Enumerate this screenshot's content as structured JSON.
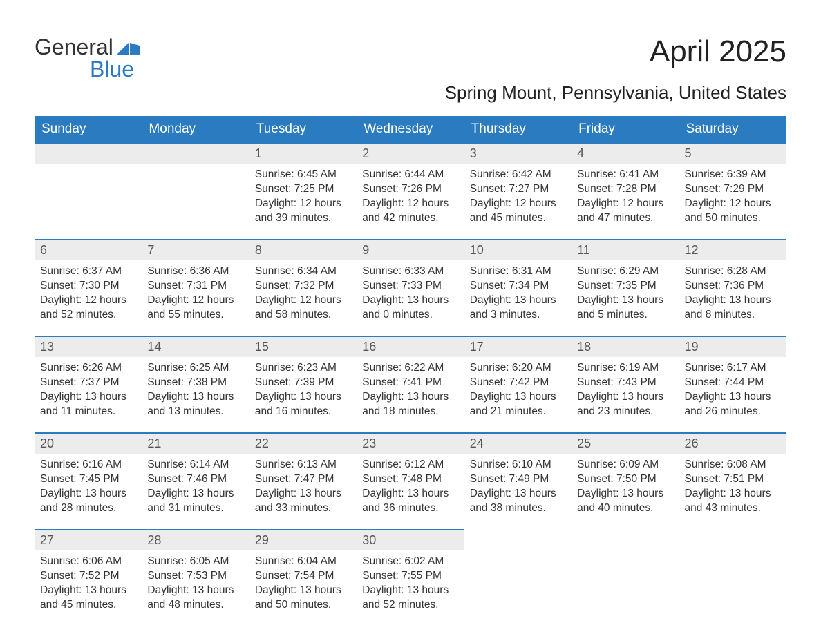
{
  "logo": {
    "part1": "General",
    "part2": "Blue"
  },
  "title": "April 2025",
  "subtitle": "Spring Mount, Pennsylvania, United States",
  "colors": {
    "header_bg": "#2a7bbf",
    "header_text": "#ffffff",
    "daynum_bg": "#ececec",
    "daynum_border": "#2a7bbf",
    "body_text": "#333333",
    "page_bg": "#ffffff"
  },
  "day_headers": [
    "Sunday",
    "Monday",
    "Tuesday",
    "Wednesday",
    "Thursday",
    "Friday",
    "Saturday"
  ],
  "weeks": [
    [
      {
        "day": "",
        "sunrise": "",
        "sunset": "",
        "daylight": ""
      },
      {
        "day": "",
        "sunrise": "",
        "sunset": "",
        "daylight": ""
      },
      {
        "day": "1",
        "sunrise": "Sunrise: 6:45 AM",
        "sunset": "Sunset: 7:25 PM",
        "daylight": "Daylight: 12 hours and 39 minutes."
      },
      {
        "day": "2",
        "sunrise": "Sunrise: 6:44 AM",
        "sunset": "Sunset: 7:26 PM",
        "daylight": "Daylight: 12 hours and 42 minutes."
      },
      {
        "day": "3",
        "sunrise": "Sunrise: 6:42 AM",
        "sunset": "Sunset: 7:27 PM",
        "daylight": "Daylight: 12 hours and 45 minutes."
      },
      {
        "day": "4",
        "sunrise": "Sunrise: 6:41 AM",
        "sunset": "Sunset: 7:28 PM",
        "daylight": "Daylight: 12 hours and 47 minutes."
      },
      {
        "day": "5",
        "sunrise": "Sunrise: 6:39 AM",
        "sunset": "Sunset: 7:29 PM",
        "daylight": "Daylight: 12 hours and 50 minutes."
      }
    ],
    [
      {
        "day": "6",
        "sunrise": "Sunrise: 6:37 AM",
        "sunset": "Sunset: 7:30 PM",
        "daylight": "Daylight: 12 hours and 52 minutes."
      },
      {
        "day": "7",
        "sunrise": "Sunrise: 6:36 AM",
        "sunset": "Sunset: 7:31 PM",
        "daylight": "Daylight: 12 hours and 55 minutes."
      },
      {
        "day": "8",
        "sunrise": "Sunrise: 6:34 AM",
        "sunset": "Sunset: 7:32 PM",
        "daylight": "Daylight: 12 hours and 58 minutes."
      },
      {
        "day": "9",
        "sunrise": "Sunrise: 6:33 AM",
        "sunset": "Sunset: 7:33 PM",
        "daylight": "Daylight: 13 hours and 0 minutes."
      },
      {
        "day": "10",
        "sunrise": "Sunrise: 6:31 AM",
        "sunset": "Sunset: 7:34 PM",
        "daylight": "Daylight: 13 hours and 3 minutes."
      },
      {
        "day": "11",
        "sunrise": "Sunrise: 6:29 AM",
        "sunset": "Sunset: 7:35 PM",
        "daylight": "Daylight: 13 hours and 5 minutes."
      },
      {
        "day": "12",
        "sunrise": "Sunrise: 6:28 AM",
        "sunset": "Sunset: 7:36 PM",
        "daylight": "Daylight: 13 hours and 8 minutes."
      }
    ],
    [
      {
        "day": "13",
        "sunrise": "Sunrise: 6:26 AM",
        "sunset": "Sunset: 7:37 PM",
        "daylight": "Daylight: 13 hours and 11 minutes."
      },
      {
        "day": "14",
        "sunrise": "Sunrise: 6:25 AM",
        "sunset": "Sunset: 7:38 PM",
        "daylight": "Daylight: 13 hours and 13 minutes."
      },
      {
        "day": "15",
        "sunrise": "Sunrise: 6:23 AM",
        "sunset": "Sunset: 7:39 PM",
        "daylight": "Daylight: 13 hours and 16 minutes."
      },
      {
        "day": "16",
        "sunrise": "Sunrise: 6:22 AM",
        "sunset": "Sunset: 7:41 PM",
        "daylight": "Daylight: 13 hours and 18 minutes."
      },
      {
        "day": "17",
        "sunrise": "Sunrise: 6:20 AM",
        "sunset": "Sunset: 7:42 PM",
        "daylight": "Daylight: 13 hours and 21 minutes."
      },
      {
        "day": "18",
        "sunrise": "Sunrise: 6:19 AM",
        "sunset": "Sunset: 7:43 PM",
        "daylight": "Daylight: 13 hours and 23 minutes."
      },
      {
        "day": "19",
        "sunrise": "Sunrise: 6:17 AM",
        "sunset": "Sunset: 7:44 PM",
        "daylight": "Daylight: 13 hours and 26 minutes."
      }
    ],
    [
      {
        "day": "20",
        "sunrise": "Sunrise: 6:16 AM",
        "sunset": "Sunset: 7:45 PM",
        "daylight": "Daylight: 13 hours and 28 minutes."
      },
      {
        "day": "21",
        "sunrise": "Sunrise: 6:14 AM",
        "sunset": "Sunset: 7:46 PM",
        "daylight": "Daylight: 13 hours and 31 minutes."
      },
      {
        "day": "22",
        "sunrise": "Sunrise: 6:13 AM",
        "sunset": "Sunset: 7:47 PM",
        "daylight": "Daylight: 13 hours and 33 minutes."
      },
      {
        "day": "23",
        "sunrise": "Sunrise: 6:12 AM",
        "sunset": "Sunset: 7:48 PM",
        "daylight": "Daylight: 13 hours and 36 minutes."
      },
      {
        "day": "24",
        "sunrise": "Sunrise: 6:10 AM",
        "sunset": "Sunset: 7:49 PM",
        "daylight": "Daylight: 13 hours and 38 minutes."
      },
      {
        "day": "25",
        "sunrise": "Sunrise: 6:09 AM",
        "sunset": "Sunset: 7:50 PM",
        "daylight": "Daylight: 13 hours and 40 minutes."
      },
      {
        "day": "26",
        "sunrise": "Sunrise: 6:08 AM",
        "sunset": "Sunset: 7:51 PM",
        "daylight": "Daylight: 13 hours and 43 minutes."
      }
    ],
    [
      {
        "day": "27",
        "sunrise": "Sunrise: 6:06 AM",
        "sunset": "Sunset: 7:52 PM",
        "daylight": "Daylight: 13 hours and 45 minutes."
      },
      {
        "day": "28",
        "sunrise": "Sunrise: 6:05 AM",
        "sunset": "Sunset: 7:53 PM",
        "daylight": "Daylight: 13 hours and 48 minutes."
      },
      {
        "day": "29",
        "sunrise": "Sunrise: 6:04 AM",
        "sunset": "Sunset: 7:54 PM",
        "daylight": "Daylight: 13 hours and 50 minutes."
      },
      {
        "day": "30",
        "sunrise": "Sunrise: 6:02 AM",
        "sunset": "Sunset: 7:55 PM",
        "daylight": "Daylight: 13 hours and 52 minutes."
      },
      {
        "day": "",
        "sunrise": "",
        "sunset": "",
        "daylight": ""
      },
      {
        "day": "",
        "sunrise": "",
        "sunset": "",
        "daylight": ""
      },
      {
        "day": "",
        "sunrise": "",
        "sunset": "",
        "daylight": ""
      }
    ]
  ]
}
